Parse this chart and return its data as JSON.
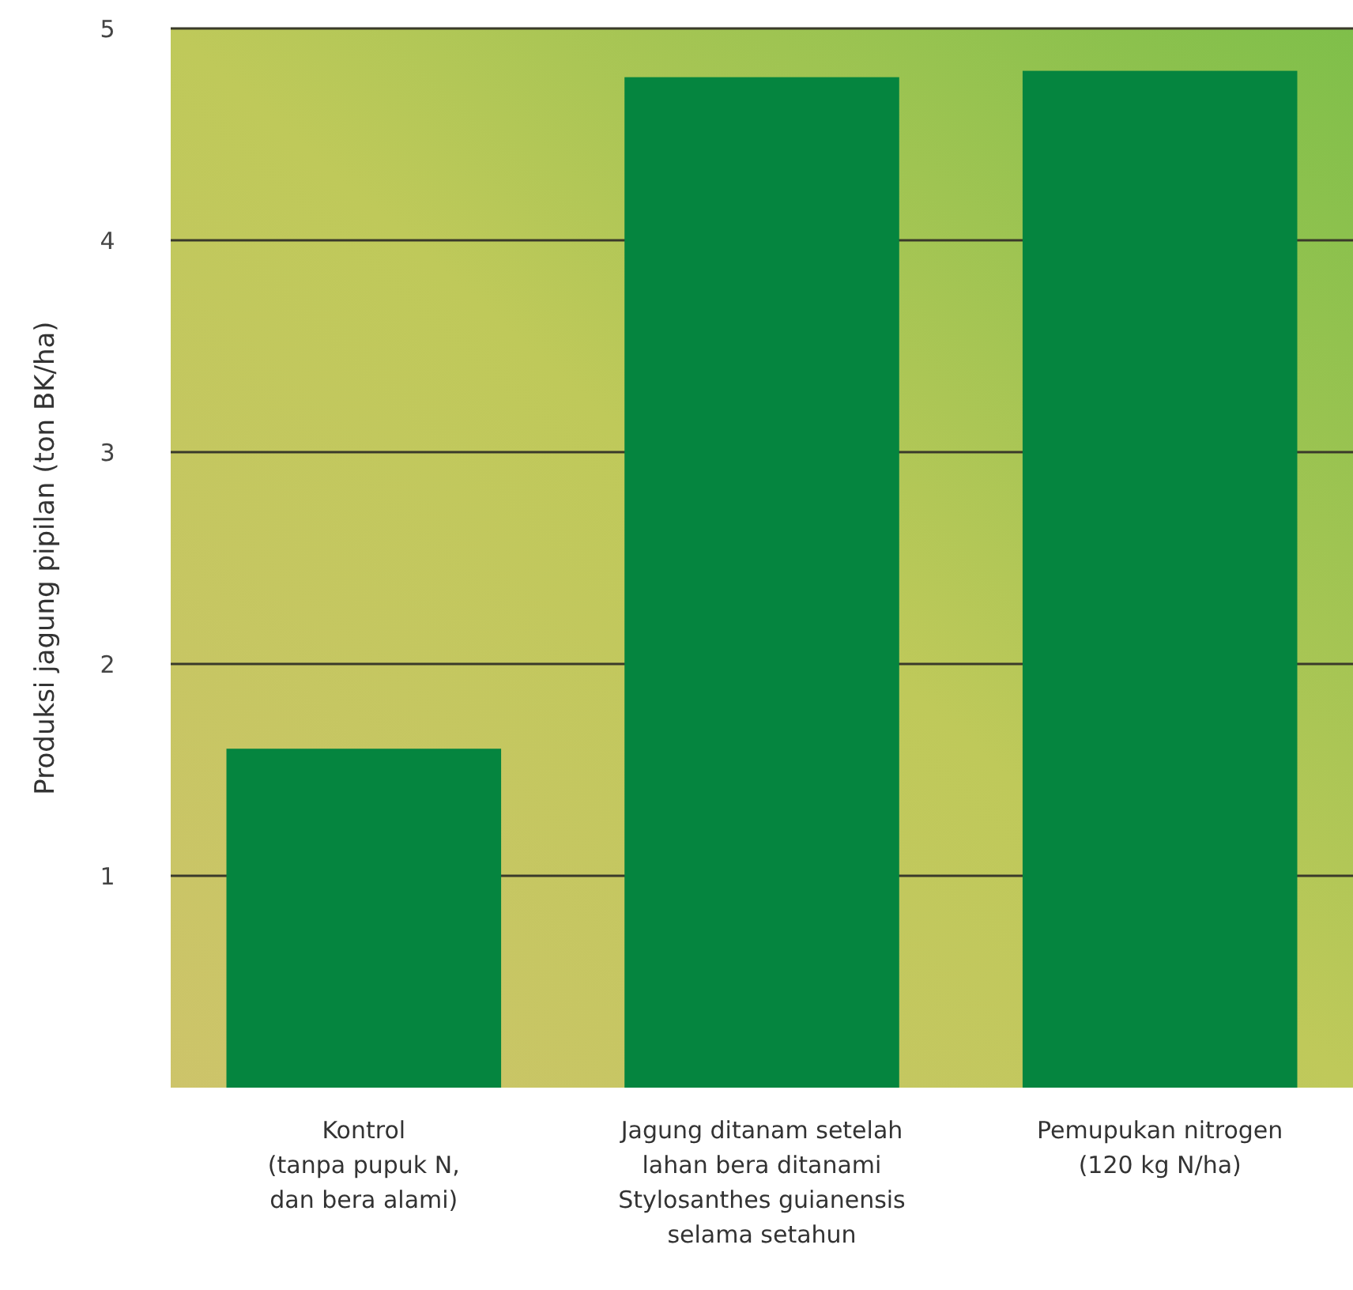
{
  "chart_data": {
    "type": "bar",
    "ylabel": "Produksi jagung pipilan (ton BK/ha)",
    "categories": [
      "Kontrol\n(tanpa pupuk N,\ndan bera alami)",
      "Jagung ditanam setelah\nlahan bera ditanami\nStylosanthes guianensis\nselama setahun",
      "Pemupukan nitrogen\n(120 kg N/ha)"
    ],
    "values": [
      1.6,
      4.77,
      4.8
    ],
    "color": "#05853f",
    "ylim": [
      0,
      5
    ],
    "yticks": [
      1,
      2,
      3,
      4,
      5
    ],
    "grid": "y"
  }
}
